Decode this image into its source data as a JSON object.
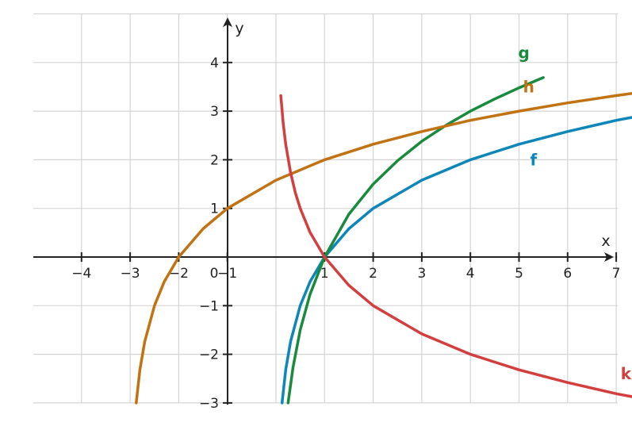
{
  "chart_data": {
    "type": "line",
    "title": "",
    "xlabel": "x",
    "ylabel": "y",
    "xlim": [
      -4,
      8
    ],
    "ylim": [
      -3,
      5
    ],
    "grid": true,
    "x_ticks": [
      -4,
      -3,
      -2,
      -1,
      0,
      1,
      2,
      3,
      4,
      5,
      6,
      7
    ],
    "y_ticks": [
      -3,
      -2,
      -1,
      1,
      2,
      3,
      4
    ],
    "x_tick_labels": [
      "−4",
      "−3",
      "−2",
      "−1",
      "0",
      "1",
      "2",
      "3",
      "4",
      "5",
      "6",
      "7"
    ],
    "y_tick_labels": [
      "−3",
      "−2",
      "−1",
      "1",
      "2",
      "3",
      "4"
    ],
    "series": [
      {
        "name": "f",
        "color": "#0e86b9",
        "label_at": [
          5.3,
          2.0
        ],
        "points": [
          [
            0.125,
            -3
          ],
          [
            0.2,
            -2.32
          ],
          [
            0.3,
            -1.74
          ],
          [
            0.5,
            -1
          ],
          [
            0.7,
            -0.51
          ],
          [
            1,
            0
          ],
          [
            1.5,
            0.58
          ],
          [
            2,
            1
          ],
          [
            3,
            1.58
          ],
          [
            4,
            2
          ],
          [
            5,
            2.32
          ],
          [
            6,
            2.58
          ],
          [
            7,
            2.81
          ],
          [
            8,
            3
          ]
        ]
      },
      {
        "name": "g",
        "color": "#1a8a3e",
        "label_at": [
          5.1,
          4.2
        ],
        "points": [
          [
            0.25,
            -3
          ],
          [
            0.35,
            -2.27
          ],
          [
            0.5,
            -1.5
          ],
          [
            0.7,
            -0.77
          ],
          [
            1,
            0
          ],
          [
            1.5,
            0.88
          ],
          [
            2,
            1.5
          ],
          [
            2.5,
            1.98
          ],
          [
            3,
            2.38
          ],
          [
            3.5,
            2.71
          ],
          [
            4,
            3
          ],
          [
            4.5,
            3.25
          ],
          [
            5,
            3.48
          ],
          [
            5.5,
            3.69
          ]
        ]
      },
      {
        "name": "h",
        "color": "#c17212",
        "label_at": [
          5.2,
          3.5
        ],
        "points": [
          [
            -2.875,
            -3
          ],
          [
            -2.8,
            -2.32
          ],
          [
            -2.7,
            -1.74
          ],
          [
            -2.5,
            -1
          ],
          [
            -2.3,
            -0.51
          ],
          [
            -2,
            0
          ],
          [
            -1.5,
            0.58
          ],
          [
            -1,
            1
          ],
          [
            0,
            1.58
          ],
          [
            1,
            2
          ],
          [
            2,
            2.32
          ],
          [
            3,
            2.58
          ],
          [
            4,
            2.81
          ],
          [
            5,
            3
          ],
          [
            6,
            3.17
          ],
          [
            7,
            3.32
          ],
          [
            8,
            3.46
          ]
        ]
      },
      {
        "name": "k",
        "color": "#d33f3f",
        "label_at": [
          7.2,
          -2.4
        ],
        "points": [
          [
            0.1,
            3.32
          ],
          [
            0.15,
            2.74
          ],
          [
            0.2,
            2.32
          ],
          [
            0.3,
            1.74
          ],
          [
            0.4,
            1.32
          ],
          [
            0.5,
            1
          ],
          [
            0.7,
            0.51
          ],
          [
            1,
            0
          ],
          [
            1.5,
            -0.58
          ],
          [
            2,
            -1
          ],
          [
            3,
            -1.58
          ],
          [
            4,
            -2
          ],
          [
            5,
            -2.32
          ],
          [
            6,
            -2.58
          ],
          [
            7,
            -2.81
          ],
          [
            8,
            -3
          ]
        ]
      }
    ]
  }
}
